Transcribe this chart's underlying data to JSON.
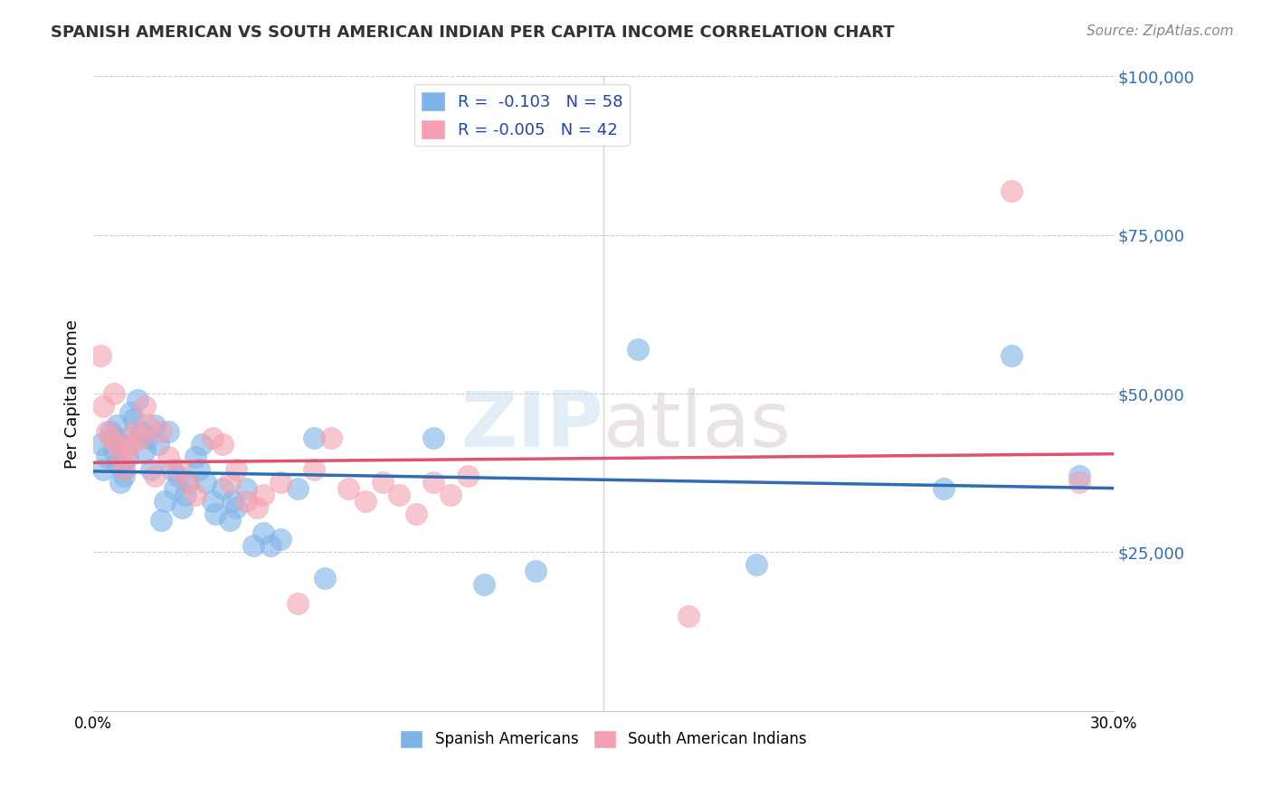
{
  "title": "SPANISH AMERICAN VS SOUTH AMERICAN INDIAN PER CAPITA INCOME CORRELATION CHART",
  "source": "Source: ZipAtlas.com",
  "ylabel": "Per Capita Income",
  "xlabel": "",
  "xlim": [
    0,
    0.3
  ],
  "ylim": [
    0,
    100000
  ],
  "yticks": [
    0,
    25000,
    50000,
    75000,
    100000
  ],
  "ytick_labels": [
    "",
    "$25,000",
    "$50,000",
    "$75,000",
    "$100,000"
  ],
  "xticks": [
    0.0,
    0.05,
    0.1,
    0.15,
    0.2,
    0.25,
    0.3
  ],
  "xtick_labels": [
    "0.0%",
    "",
    "",
    "",
    "",
    "",
    "30.0%"
  ],
  "blue_color": "#7EB3E8",
  "pink_color": "#F4A0B0",
  "blue_line_color": "#2E6DB4",
  "pink_line_color": "#E05070",
  "legend_R_blue": "-0.103",
  "legend_N_blue": "58",
  "legend_R_pink": "-0.005",
  "legend_N_pink": "42",
  "watermark": "ZIPatlas",
  "blue_scatter_x": [
    0.002,
    0.003,
    0.004,
    0.005,
    0.006,
    0.006,
    0.007,
    0.007,
    0.008,
    0.008,
    0.009,
    0.009,
    0.01,
    0.01,
    0.011,
    0.012,
    0.013,
    0.014,
    0.015,
    0.016,
    0.017,
    0.018,
    0.019,
    0.02,
    0.021,
    0.022,
    0.023,
    0.024,
    0.025,
    0.026,
    0.027,
    0.028,
    0.03,
    0.031,
    0.032,
    0.033,
    0.035,
    0.036,
    0.038,
    0.04,
    0.041,
    0.042,
    0.045,
    0.047,
    0.05,
    0.052,
    0.055,
    0.06,
    0.065,
    0.068,
    0.1,
    0.115,
    0.13,
    0.16,
    0.195,
    0.25,
    0.27,
    0.29
  ],
  "blue_scatter_y": [
    42000,
    38000,
    40000,
    44000,
    43000,
    41000,
    45000,
    39000,
    42000,
    36000,
    38000,
    37000,
    43000,
    40000,
    47000,
    46000,
    49000,
    44000,
    41000,
    43000,
    38000,
    45000,
    42000,
    30000,
    33000,
    44000,
    38000,
    35000,
    37000,
    32000,
    34000,
    36000,
    40000,
    38000,
    42000,
    36000,
    33000,
    31000,
    35000,
    30000,
    33000,
    32000,
    35000,
    26000,
    28000,
    26000,
    27000,
    35000,
    43000,
    21000,
    43000,
    20000,
    22000,
    57000,
    23000,
    35000,
    56000,
    37000
  ],
  "pink_scatter_x": [
    0.002,
    0.003,
    0.004,
    0.005,
    0.006,
    0.007,
    0.008,
    0.009,
    0.01,
    0.011,
    0.012,
    0.014,
    0.015,
    0.016,
    0.018,
    0.02,
    0.022,
    0.025,
    0.028,
    0.03,
    0.035,
    0.038,
    0.04,
    0.042,
    0.045,
    0.048,
    0.05,
    0.055,
    0.06,
    0.065,
    0.07,
    0.075,
    0.08,
    0.085,
    0.09,
    0.095,
    0.1,
    0.105,
    0.11,
    0.175,
    0.27,
    0.29
  ],
  "pink_scatter_y": [
    56000,
    48000,
    44000,
    43000,
    50000,
    42000,
    40000,
    38000,
    41000,
    42000,
    44000,
    43000,
    48000,
    45000,
    37000,
    44000,
    40000,
    38000,
    36000,
    34000,
    43000,
    42000,
    36000,
    38000,
    33000,
    32000,
    34000,
    36000,
    17000,
    38000,
    43000,
    35000,
    33000,
    36000,
    34000,
    31000,
    36000,
    34000,
    37000,
    15000,
    82000,
    36000
  ]
}
